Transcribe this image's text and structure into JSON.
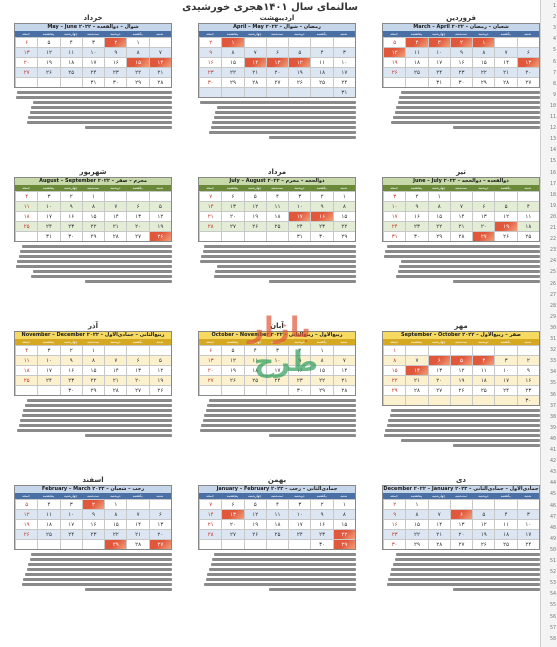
{
  "page": {
    "title": "سالنمای سال ۱۴۰۱هجری خورشیدی"
  },
  "weekday_labels": [
    "شنبه",
    "یکشنبه",
    "دوشنبه",
    "سه‌شنبه",
    "چهارشنبه",
    "پنجشنبه",
    "جمعه"
  ],
  "colors": {
    "blue": "#4a6fa5",
    "green": "#6a8a3a",
    "gold": "#d4a820",
    "holiday": "#e0573c",
    "alt_blue": "#dce6f2",
    "alt_green": "#e3ecd4",
    "alt_gold": "#fbf1cf"
  },
  "watermark": {
    "line1": "بازار",
    "line2": "طرح"
  },
  "months": [
    {
      "name": "فروردین",
      "sub": "March – April ۲۰۲۲ – شعبان – رمضان",
      "theme": "blue",
      "first_col": 2,
      "days": 31,
      "holidays": [
        1,
        2,
        3,
        4,
        12,
        13
      ]
    },
    {
      "name": "اردیبهشت",
      "sub": "April – May ۲۰۲۲ – رمضان – شوال",
      "theme": "blue",
      "first_col": 5,
      "days": 31,
      "holidays": [
        1,
        12,
        13,
        14
      ]
    },
    {
      "name": "خرداد",
      "sub": "May – June ۲۰۲۲ – شوال – ذوالقعده",
      "theme": "blue",
      "first_col": 1,
      "days": 31,
      "holidays": [
        2,
        14,
        15
      ]
    },
    {
      "name": "تیر",
      "sub": "June – July ۲۰۲۲ – ذوالقعده – ذوالحجه",
      "theme": "green",
      "first_col": 4,
      "days": 31,
      "holidays": [
        19,
        27
      ]
    },
    {
      "name": "مرداد",
      "sub": "July – August ۲۰۲۲ – ذوالحجه – محرم",
      "theme": "green",
      "first_col": 0,
      "days": 31,
      "holidays": [
        16,
        17
      ]
    },
    {
      "name": "شهریور",
      "sub": "August – September ۲۰۲۲ – محرم – صفر",
      "theme": "green",
      "first_col": 3,
      "days": 31,
      "holidays": [
        26
      ]
    },
    {
      "name": "مهر",
      "sub": "September – October ۲۰۲۲ – صفر – ربیع‌الاول",
      "theme": "gold",
      "first_col": 6,
      "days": 30,
      "holidays": [
        4,
        5,
        6,
        14
      ]
    },
    {
      "name": "آبان",
      "sub": "October – November ۲۰۲۲ – ربیع‌الاول – ربیع‌الثانی",
      "theme": "gold",
      "first_col": 1,
      "days": 30,
      "holidays": []
    },
    {
      "name": "آذر",
      "sub": "November – December ۲۰۲۲ – ربیع‌الثانی – جمادی‌الاول",
      "theme": "gold",
      "first_col": 3,
      "days": 30,
      "holidays": []
    },
    {
      "name": "دی",
      "sub": "December ۲۰۲۲ – January ۲۰۲۳ – جمادی‌الاول – جمادی‌الثانی",
      "theme": "blue",
      "first_col": 5,
      "days": 30,
      "holidays": [
        6
      ]
    },
    {
      "name": "بهمن",
      "sub": "January – February ۲۰۲۳ – جمادی‌الثانی – رجب",
      "theme": "blue",
      "first_col": 0,
      "days": 30,
      "holidays": [
        13,
        22,
        29
      ]
    },
    {
      "name": "اسفند",
      "sub": "February – March ۲۰۲۳ – رجب – شعبان",
      "theme": "blue",
      "first_col": 2,
      "days": 29,
      "holidays": [
        2,
        27,
        29
      ]
    }
  ]
}
